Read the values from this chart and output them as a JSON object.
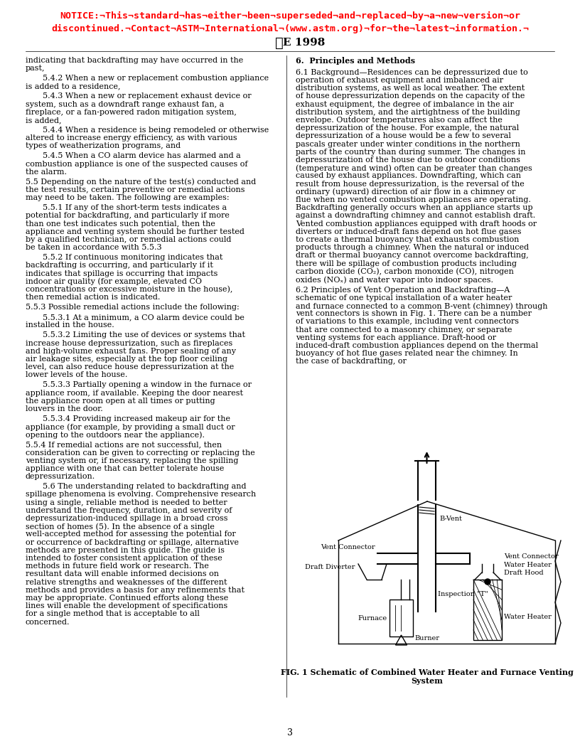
{
  "notice_line1": "NOTICE:¬This¬standard¬has¬either¬been¬superseded¬and¬replaced¬by¬a¬new¬version¬or",
  "notice_line2": "discontinued.¬Contact¬ASTM¬International¬(www.astm.org)¬for¬the¬latest¬information.¬",
  "astm_label": "E 1998",
  "page_number": "3",
  "notice_color": "#FF0000",
  "text_color": "#000000",
  "background_color": "#FFFFFF",
  "body_font_size": 8.0,
  "notice_font_size": 9.5,
  "left_column_paragraphs": [
    {
      "text": "indicating that backdrafting may have occurred in the past,",
      "indent": false
    },
    {
      "text": "5.4.2  When a new or replacement combustion appliance is added to a residence,",
      "indent": true
    },
    {
      "text": "5.4.3  When a new or replacement exhaust device or system, such as a downdraft range exhaust fan, a fireplace, or a fan-powered radon mitigation system, is added,",
      "indent": true
    },
    {
      "text": "5.4.4  When a residence is being remodeled or otherwise altered to increase energy efficiency, as with various types of weatherization programs, and",
      "indent": true
    },
    {
      "text": "5.4.5  When a CO alarm device has alarmed and a combustion appliance is one of the suspected causes of the alarm.",
      "indent": true
    },
    {
      "text": "5.5  Depending on the nature of the test(s) conducted and the test results, certain preventive or remedial actions may need to be taken. The following are examples:",
      "indent": false
    },
    {
      "text": "5.5.1  If any of the short-term tests indicates a potential for backdrafting, and particularly if more than one test indicates such potential, then the appliance and venting system should be further tested by a qualified technician, or remedial actions could be taken in accordance with 5.5.3",
      "indent": true
    },
    {
      "text": "5.5.2  If continuous monitoring indicates that backdrafting is occurring, and particularly if it indicates that spillage is occurring that impacts indoor air quality (for example, elevated CO concentrations or excessive moisture in the house), then remedial action is indicated.",
      "indent": true
    },
    {
      "text": "5.5.3  Possible remedial actions include the following:",
      "indent": false
    },
    {
      "text": "5.5.3.1  At a minimum, a CO alarm device could be installed in the house.",
      "indent": true
    },
    {
      "text": "5.5.3.2  Limiting the use of devices or systems that increase house depressurization, such as fireplaces and high-volume exhaust fans. Proper sealing of any air leakage sites, especially at the top floor ceiling level, can also reduce house depressurization at the lower levels of the house.",
      "indent": true
    },
    {
      "text": "5.5.3.3  Partially opening a window in the furnace or appliance room, if available. Keeping the door nearest the appliance room open at all times or putting louvers in the door.",
      "indent": true
    },
    {
      "text": "5.5.3.4  Providing increased makeup air for the appliance (for example, by providing a small duct or opening to the outdoors near the appliance).",
      "indent": true
    },
    {
      "text": "5.5.4  If remedial actions are not successful, then consideration can be given to correcting or replacing the venting system or, if necessary, replacing the spilling appliance with one that can better tolerate house depressurization.",
      "indent": false
    },
    {
      "text": "5.6  The understanding related to backdrafting and spillage phenomena is evolving. Comprehensive research using a single, reliable method is needed to better understand the frequency, duration, and severity of depressurization-induced spillage in a broad cross section of homes (5). In the absence of a single well-accepted method for assessing the potential for or occurrence of backdrafting or spillage, alternative methods are presented in this guide. The guide is intended to foster consistent application of these methods in future field work or research. The resultant data will enable informed decisions on relative strengths and weaknesses of the different methods and provides a basis for any refinements that may be appropriate. Continued efforts along these lines will enable the development of specifications for a single method that is acceptable to all concerned.",
      "indent": true
    }
  ],
  "right_column_paragraphs": [
    {
      "text": "6.  Principles and Methods",
      "style": "heading"
    },
    {
      "text": "6.1  Background—Residences can be depressurized due to operation of exhaust equipment and imbalanced air distribution systems, as well as local weather. The extent of house depressurization depends on the capacity of the exhaust equipment, the degree of imbalance in the air distribution system, and the airtightness of the building envelope. Outdoor temperatures also can affect the depressurization of the house. For example, the natural depressurization of a house would be a few to several pascals greater under winter conditions in the northern parts of the country than during summer. The changes in depressurization of the house due to outdoor conditions (temperature and wind) often can be greater than changes caused by exhaust appliances. Downdrafting, which can result from house depressurization, is the reversal of the ordinary (upward) direction of air flow in a chimney or flue when no vented combustion appliances are operating. Backdrafting generally occurs when an appliance starts up against a downdrafting chimney and cannot establish draft. Vented combustion appliances equipped with draft hoods or diverters or induced-draft fans depend on hot flue gases to create a thermal buoyancy that exhausts combustion products through a chimney. When the natural or induced draft or thermal buoyancy cannot overcome backdrafting, there will be spillage of combustion products including carbon dioxide (CO₂), carbon monoxide (CO), nitrogen oxides (NOₓ) and water vapor into indoor spaces.",
      "style": "normal"
    },
    {
      "text": "6.2  Principles of Vent Operation and Backdrafting—A schematic of one typical installation of a water heater and furnace connected to a common B-vent (chimney) through vent connectors is shown in Fig. 1. There can be a number of variations to this example, including vent connectors that are connected to a masonry chimney, or separate venting systems for each appliance. Draft-hood or induced-draft combustion appliances depend on the thermal buoyancy of hot flue gases related near the chimney. In the case of backdrafting, or",
      "style": "normal"
    }
  ],
  "fig_caption_line1": "FIG. 1 Schematic of Combined Water Heater and Furnace Venting",
  "fig_caption_line2": "System"
}
